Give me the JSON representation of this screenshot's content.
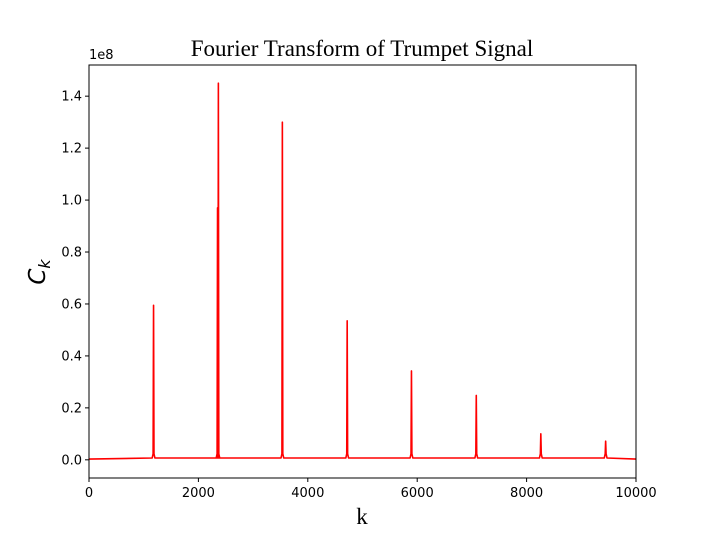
{
  "chart_data": {
    "type": "line",
    "title": "Fourier Transform of Trumpet Signal",
    "xlabel": "k",
    "ylabel_main": "C",
    "ylabel_sub": "k",
    "y_offset_label": "1e8",
    "xlim": [
      0,
      10000
    ],
    "ylim": [
      -0.07,
      1.52
    ],
    "x_ticks": [
      0,
      2000,
      4000,
      6000,
      8000,
      10000
    ],
    "x_tick_labels": [
      "0",
      "2000",
      "4000",
      "6000",
      "8000",
      "10000"
    ],
    "y_ticks": [
      0.0,
      0.2,
      0.4,
      0.6,
      0.8,
      1.0,
      1.2,
      1.4
    ],
    "y_tick_labels": [
      "0.0",
      "0.2",
      "0.4",
      "0.6",
      "0.8",
      "1.0",
      "1.2",
      "1.4"
    ],
    "grid": false,
    "line_color": "#ff0000",
    "series": [
      {
        "peaks": [
          {
            "k": 1180,
            "value": 0.595
          },
          {
            "k": 2350,
            "value": 0.97
          },
          {
            "k": 2365,
            "value": 1.45
          },
          {
            "k": 3535,
            "value": 1.3
          },
          {
            "k": 4720,
            "value": 0.535
          },
          {
            "k": 5895,
            "value": 0.342
          },
          {
            "k": 7080,
            "value": 0.248
          },
          {
            "k": 8260,
            "value": 0.1
          },
          {
            "k": 9445,
            "value": 0.072
          }
        ],
        "baseline": 0.003
      }
    ]
  }
}
